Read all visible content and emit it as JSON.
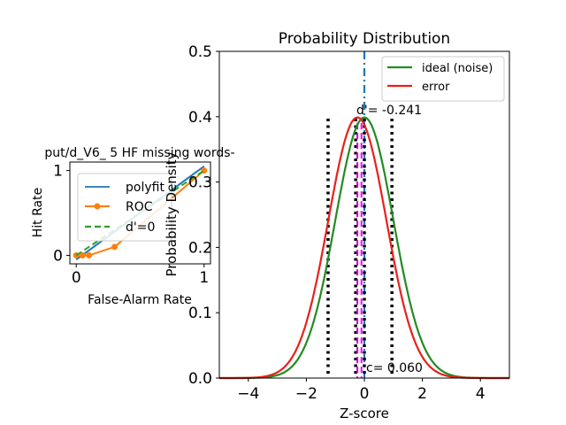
{
  "chart_data": [
    {
      "type": "line",
      "title": "put/d_V6_ 5 HF missing words-",
      "xlabel": "False-Alarm Rate",
      "ylabel": "Hit Rate",
      "xlim": [
        -0.05,
        1.05
      ],
      "ylim": [
        -0.1,
        1.1
      ],
      "xticks": [
        "0",
        "1"
      ],
      "yticks": [
        "0",
        "1"
      ],
      "legend_position": "upper-left",
      "series": [
        {
          "name": "polyfit",
          "color": "#1f77b4",
          "style": "solid",
          "x": [
            0,
            1
          ],
          "y": [
            -0.05,
            1.05
          ]
        },
        {
          "name": "ROC",
          "color": "#ff7f0e",
          "style": "solid-markers",
          "x": [
            0.0,
            0.05,
            0.1,
            0.3,
            1.0
          ],
          "y": [
            0.0,
            0.0,
            0.0,
            0.1,
            1.0
          ]
        },
        {
          "name": "d'=0",
          "color": "#2ca02c",
          "style": "dashed",
          "x": [
            0,
            1
          ],
          "y": [
            0,
            1
          ]
        }
      ]
    },
    {
      "type": "line",
      "title": "Probability Distribution",
      "xlabel": "Z-score",
      "ylabel": "Probability Density",
      "xlim": [
        -5,
        5
      ],
      "ylim": [
        0.0,
        0.5
      ],
      "xticks": [
        "−4",
        "−2",
        "0",
        "2",
        "4"
      ],
      "yticks": [
        "0.0",
        "0.1",
        "0.2",
        "0.3",
        "0.4",
        "0.5"
      ],
      "legend_position": "upper-right",
      "series": [
        {
          "name": "ideal (noise)",
          "color": "#228b22",
          "mean": 0.0,
          "sd": 1.0
        },
        {
          "name": "error",
          "color": "#e8201a",
          "mean": -0.241,
          "sd": 1.0
        }
      ],
      "vlines": [
        {
          "x": 0.0,
          "color": "#1f77b4",
          "style": "dash-dot"
        },
        {
          "x": -1.25,
          "color": "#000000",
          "style": "dotted"
        },
        {
          "x": -0.3,
          "color": "#000000",
          "style": "dotted"
        },
        {
          "x": 0.0,
          "color": "#000000",
          "style": "dotted"
        },
        {
          "x": 0.95,
          "color": "#000000",
          "style": "dotted"
        },
        {
          "x": -0.1,
          "color": "#ff00ff",
          "style": "dashed"
        },
        {
          "x": -0.241,
          "color": "#cc00cc",
          "style": "dashed"
        }
      ],
      "annotations": {
        "dprime": "d'= -0.241",
        "criterion": "c= 0.060"
      }
    }
  ]
}
